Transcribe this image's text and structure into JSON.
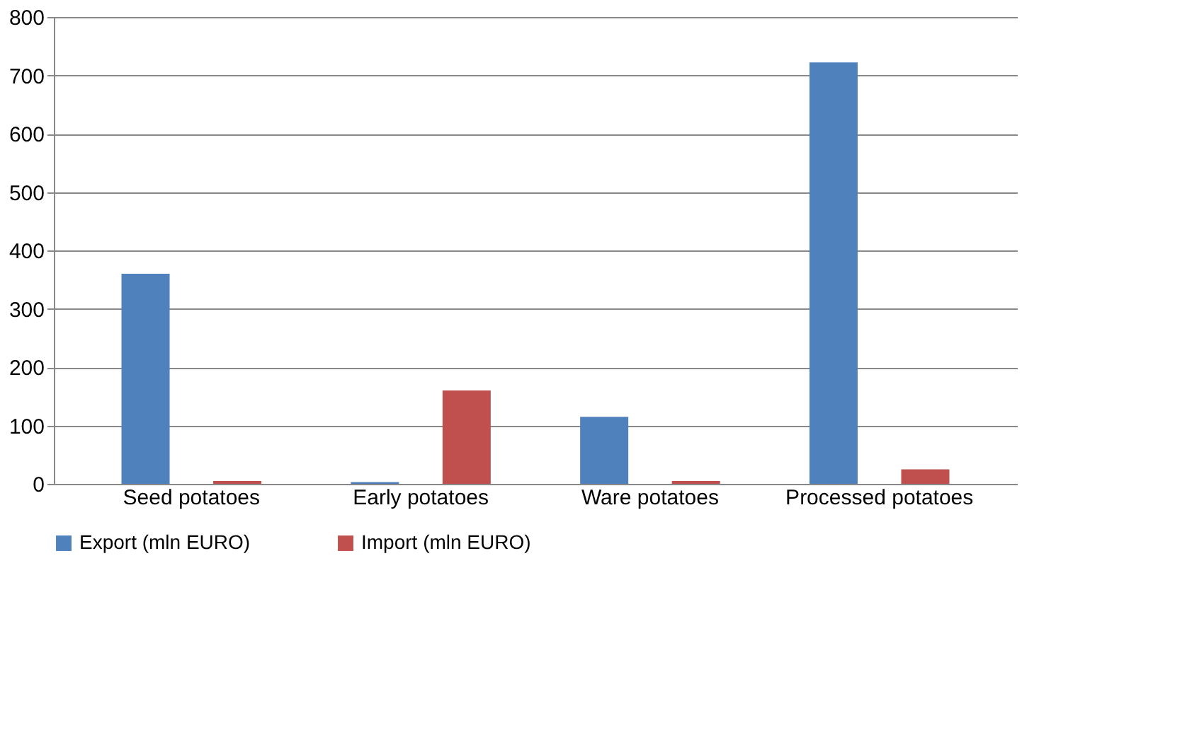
{
  "chart_data": {
    "type": "bar",
    "categories": [
      "Seed potatoes",
      "Early potatoes",
      "Ware potatoes",
      "Processed potatoes"
    ],
    "series": [
      {
        "name": "Export (mln EURO)",
        "color": "#4f81bd",
        "values": [
          360,
          3,
          115,
          722
        ]
      },
      {
        "name": "Import (mln EURO)",
        "color": "#c0504d",
        "values": [
          5,
          160,
          5,
          25
        ]
      }
    ],
    "ylim": [
      0,
      800
    ],
    "yticks": [
      0,
      100,
      200,
      300,
      400,
      500,
      600,
      700,
      800
    ],
    "grid": "y",
    "legend": "bottom"
  }
}
